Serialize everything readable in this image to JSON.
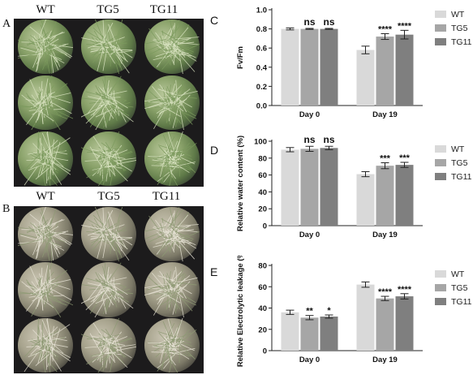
{
  "figure": {
    "photo_panels": [
      {
        "letter": "A",
        "labels": [
          "WT",
          "TG5",
          "TG11"
        ]
      },
      {
        "letter": "B",
        "labels": [
          "WT",
          "TG5",
          "TG11"
        ]
      }
    ]
  },
  "chart_data": [
    {
      "type": "bar",
      "letter": "C",
      "categories": [
        "Day 0",
        "Day 19"
      ],
      "series": [
        {
          "name": "WT",
          "values": [
            0.8,
            0.58
          ],
          "errors": [
            0.01,
            0.04
          ],
          "marks": [
            "",
            ""
          ]
        },
        {
          "name": "TG5",
          "values": [
            0.8,
            0.72
          ],
          "errors": [
            0.005,
            0.03
          ],
          "marks": [
            "ns",
            "****"
          ]
        },
        {
          "name": "TG11",
          "values": [
            0.8,
            0.74
          ],
          "errors": [
            0.005,
            0.045
          ],
          "marks": [
            "ns",
            "****"
          ]
        }
      ],
      "ylabel": "Fv/Fm",
      "ylim": [
        0,
        1.0
      ],
      "yticks": [
        "0.0",
        "0.2",
        "0.4",
        "0.6",
        "0.8",
        "1.0"
      ],
      "colors": [
        "#d9d9d9",
        "#a6a6a6",
        "#7f7f7f"
      ],
      "legend_position": "top-right"
    },
    {
      "type": "bar",
      "letter": "D",
      "categories": [
        "Day 0",
        "Day 19"
      ],
      "series": [
        {
          "name": "WT",
          "values": [
            90,
            61
          ],
          "errors": [
            2.5,
            3
          ],
          "marks": [
            "",
            ""
          ]
        },
        {
          "name": "TG5",
          "values": [
            91,
            71
          ],
          "errors": [
            3,
            3.5
          ],
          "marks": [
            "ns",
            "***"
          ]
        },
        {
          "name": "TG11",
          "values": [
            92,
            72
          ],
          "errors": [
            2,
            3
          ],
          "marks": [
            "ns",
            "***"
          ]
        }
      ],
      "ylabel": "Relative water content (%)",
      "ylim": [
        0,
        100
      ],
      "yticks": [
        "0",
        "20",
        "40",
        "60",
        "80",
        "100"
      ],
      "colors": [
        "#d9d9d9",
        "#a6a6a6",
        "#7f7f7f"
      ],
      "legend_position": "top-right"
    },
    {
      "type": "bar",
      "letter": "E",
      "categories": [
        "Day 0",
        "Day 19"
      ],
      "series": [
        {
          "name": "WT",
          "values": [
            36,
            62
          ],
          "errors": [
            2,
            2.5
          ],
          "marks": [
            "",
            ""
          ]
        },
        {
          "name": "TG5",
          "values": [
            31,
            49
          ],
          "errors": [
            2,
            2
          ],
          "marks": [
            "**",
            "****"
          ]
        },
        {
          "name": "TG11",
          "values": [
            32,
            51
          ],
          "errors": [
            1.5,
            2.5
          ],
          "marks": [
            "*",
            "****"
          ]
        }
      ],
      "ylabel": "Relative Electrolytic leakage (%)",
      "ylim": [
        0,
        80
      ],
      "yticks": [
        "0",
        "20",
        "40",
        "60",
        "80"
      ],
      "colors": [
        "#d9d9d9",
        "#a6a6a6",
        "#7f7f7f"
      ],
      "legend_position": "right"
    }
  ]
}
